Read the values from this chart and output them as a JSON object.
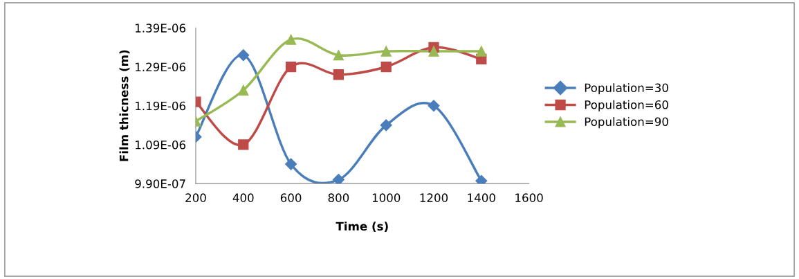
{
  "chart_data": {
    "type": "line",
    "xlabel": "Time (s)",
    "ylabel": "Film thicness (m)",
    "x": [
      200,
      400,
      600,
      800,
      1000,
      1200,
      1400
    ],
    "xlim": [
      200,
      1600
    ],
    "xticks": [
      200,
      400,
      600,
      800,
      1000,
      1200,
      1400,
      1600
    ],
    "ylim": [
      9.9e-07,
      1.39e-06
    ],
    "yticks": [
      {
        "value": 9.9e-07,
        "label": "9.90E-07"
      },
      {
        "value": 1.09e-06,
        "label": "1.09E-06"
      },
      {
        "value": 1.19e-06,
        "label": "1.19E-06"
      },
      {
        "value": 1.29e-06,
        "label": "1.29E-06"
      },
      {
        "value": 1.39e-06,
        "label": "1.39E-06"
      }
    ],
    "grid": false,
    "legend": "right",
    "line_style": "solid",
    "series": [
      {
        "name": "Population=30",
        "color": "#4a7ebb",
        "marker": "diamond",
        "values": [
          1.11e-06,
          1.32e-06,
          1.04e-06,
          1e-06,
          1.14e-06,
          1.19e-06,
          9.97e-07
        ]
      },
      {
        "name": "Population=60",
        "color": "#be4b48",
        "marker": "square",
        "values": [
          1.2e-06,
          1.09e-06,
          1.29e-06,
          1.27e-06,
          1.29e-06,
          1.34e-06,
          1.31e-06
        ]
      },
      {
        "name": "Population=90",
        "color": "#98b954",
        "marker": "triangle",
        "values": [
          1.15e-06,
          1.23e-06,
          1.36e-06,
          1.32e-06,
          1.33e-06,
          1.33e-06,
          1.33e-06
        ]
      }
    ]
  }
}
